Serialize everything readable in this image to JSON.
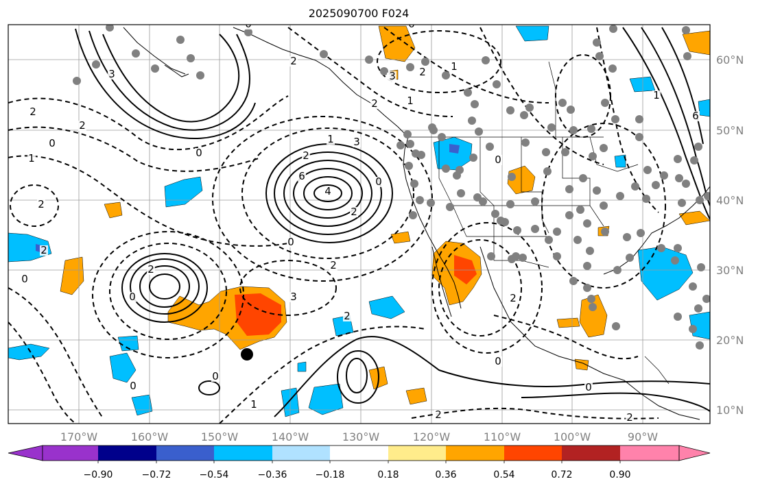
{
  "title": "2025090700 F024",
  "map": {
    "lon_labels": [
      "170°W",
      "160°W",
      "150°W",
      "140°W",
      "130°W",
      "120°W",
      "110°W",
      "100°W",
      "90°W"
    ],
    "lat_labels": [
      "60°N",
      "50°N",
      "40°N",
      "30°N",
      "20°N",
      "10°N"
    ],
    "contour_labels": [
      "3",
      "2",
      "2",
      "0",
      "1",
      "2",
      "0",
      "1",
      "3",
      "6",
      "4",
      "2",
      "0",
      "2",
      "2",
      "0",
      "2",
      "3",
      "2",
      "2",
      "0",
      "1",
      "0",
      "0",
      "1",
      "2",
      "0",
      "2",
      "3",
      "2",
      "1",
      "0",
      "0",
      "2",
      "2",
      "6",
      "0",
      "0",
      "0",
      "1",
      "2",
      "3"
    ],
    "marker": "black-dot"
  },
  "colorbar": {
    "ticks": [
      "−0.90",
      "−0.72",
      "−0.54",
      "−0.36",
      "−0.18",
      "0.18",
      "0.36",
      "0.54",
      "0.72",
      "0.90"
    ],
    "colors": [
      "#9932cc",
      "#00008b",
      "#3a5fcd",
      "#00bfff",
      "#b0e2ff",
      "#ffffff",
      "#ffec8b",
      "#ffa500",
      "#ff4500",
      "#b22222",
      "#ff82ab"
    ]
  }
}
